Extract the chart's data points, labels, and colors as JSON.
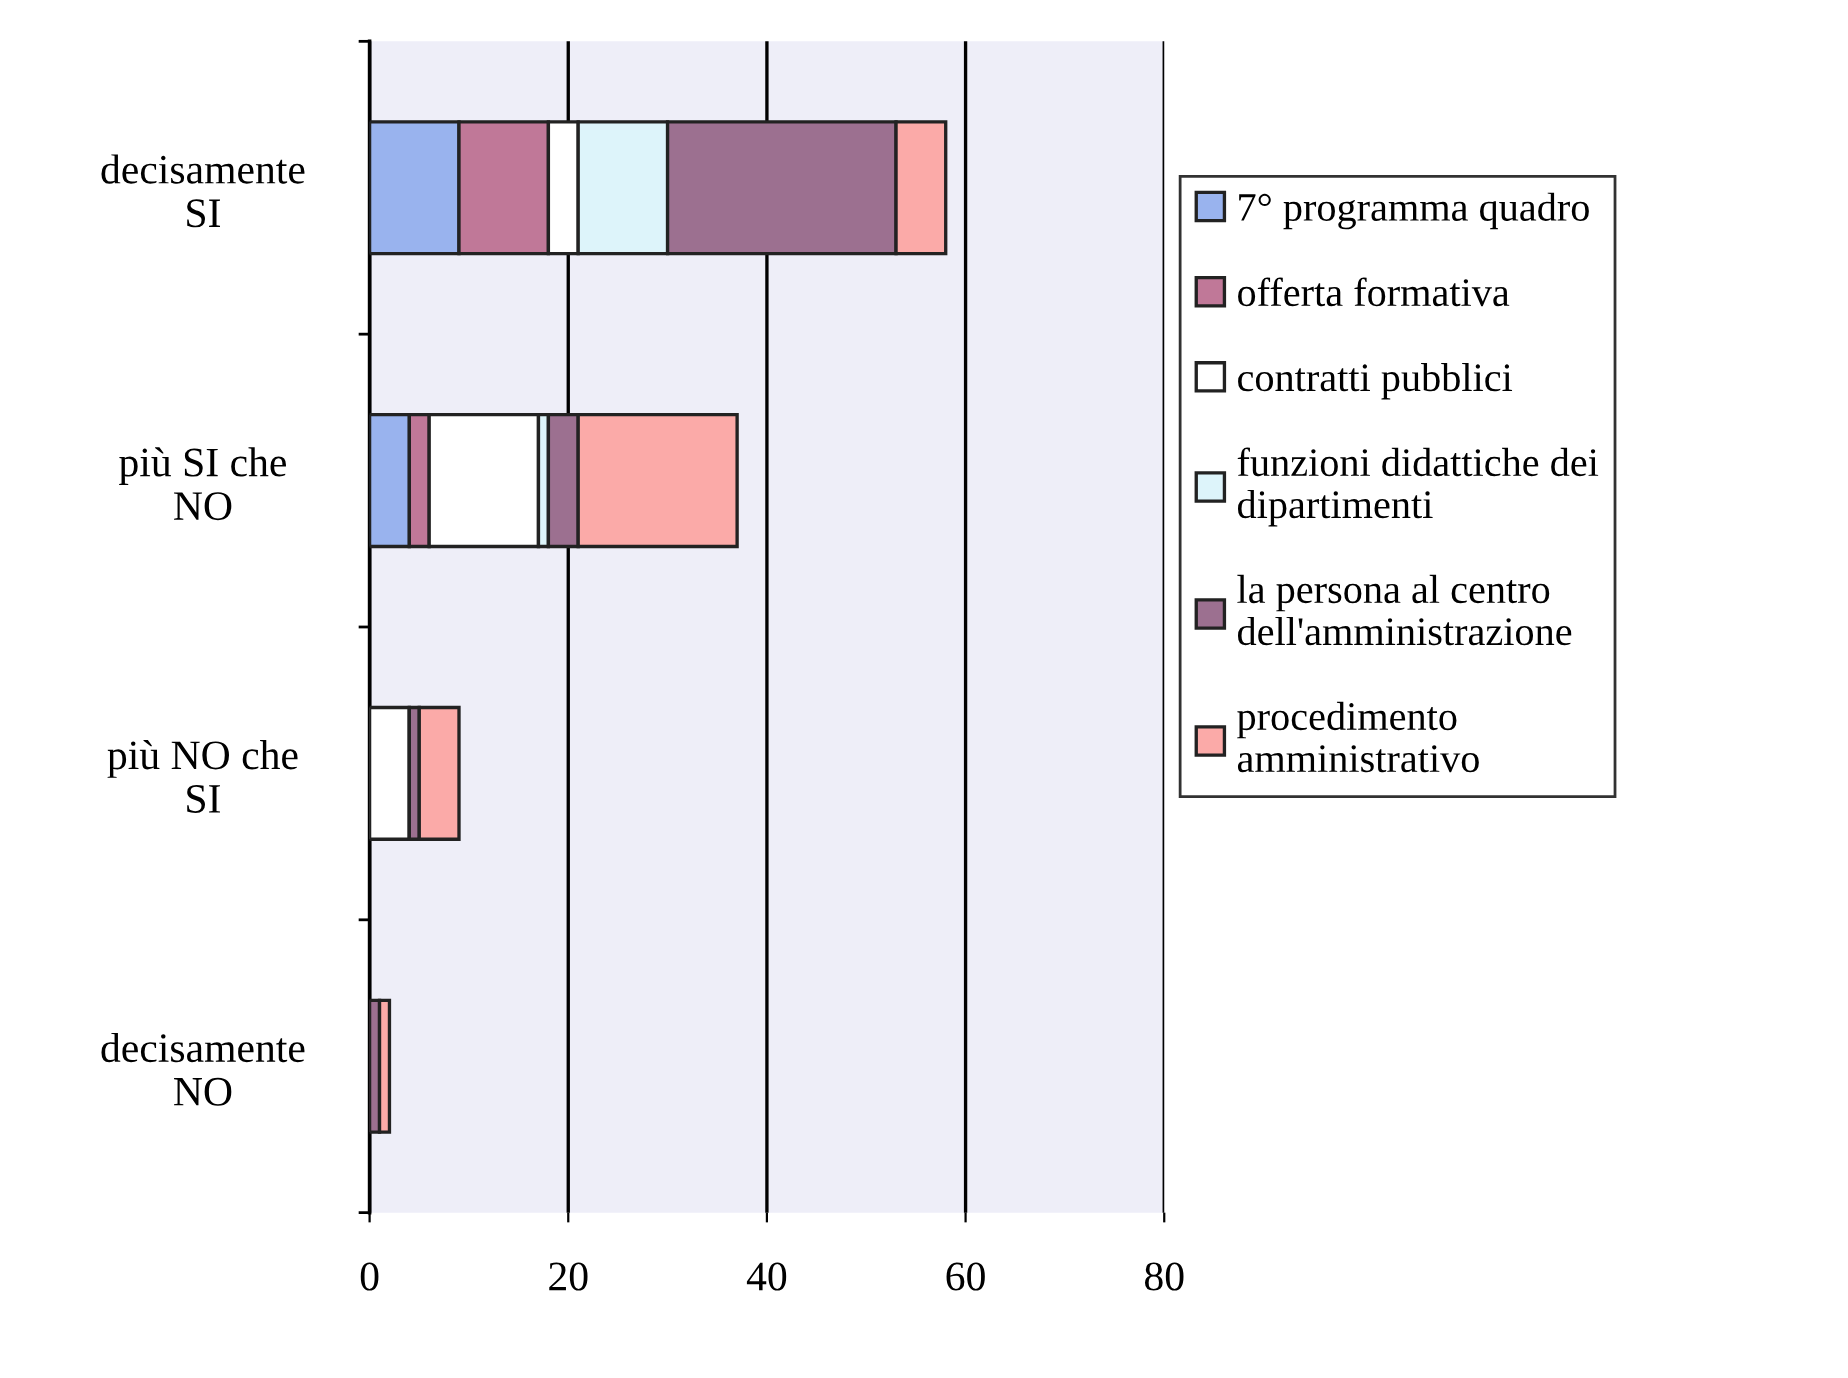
{
  "chart_data": {
    "type": "bar",
    "orientation": "horizontal",
    "stacked": true,
    "categories": [
      "decisamente\nSI",
      "più SI che\nNO",
      "più NO che\nSI",
      "decisamente\nNO"
    ],
    "series": [
      {
        "name": "7° programma quadro",
        "color": "#99b3ee",
        "values": [
          9,
          4,
          0,
          0
        ]
      },
      {
        "name": "offerta formativa",
        "color": "#c07898",
        "values": [
          9,
          2,
          0,
          0
        ]
      },
      {
        "name": "contratti pubblici",
        "color": "#ffffff",
        "values": [
          3,
          11,
          4,
          0
        ]
      },
      {
        "name": "funzioni didattiche dei\ndipartimenti",
        "color": "#ddf4fa",
        "values": [
          9,
          1,
          0,
          0
        ]
      },
      {
        "name": "la persona al centro\ndell'amministrazione",
        "color": "#9c7090",
        "values": [
          23,
          3,
          1,
          1
        ]
      },
      {
        "name": "procedimento\namministrativo",
        "color": "#fbaaa8",
        "values": [
          5,
          16,
          4,
          1
        ]
      }
    ],
    "xlim": [
      0,
      80
    ],
    "xticks": [
      0,
      20,
      40,
      60,
      80
    ],
    "grid": "x",
    "legend": "right"
  }
}
